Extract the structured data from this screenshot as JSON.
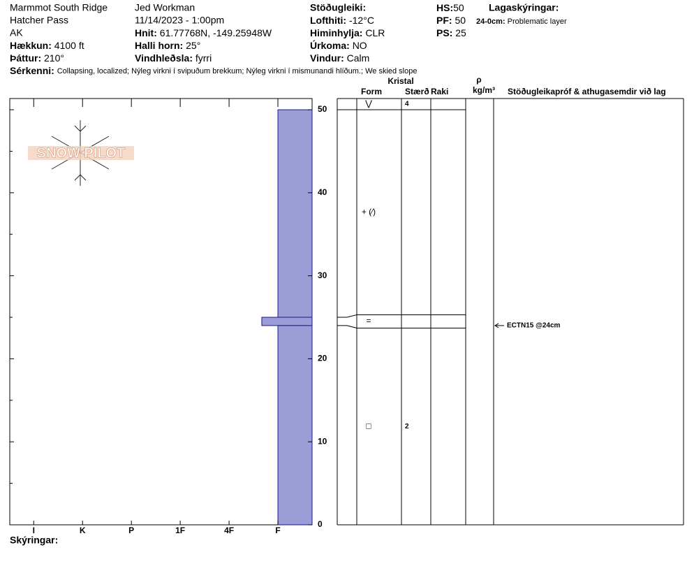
{
  "header": {
    "location": [
      "Marmmot South Ridge",
      "Hatcher Pass",
      "AK"
    ],
    "observer": "Jed Workman",
    "datetime": "11/14/2023 - 1:00pm",
    "fields": [
      {
        "label": "Hækkun:",
        "value": "4100 ft"
      },
      {
        "label": "Þáttur:",
        "value": "210°"
      },
      {
        "label": "Hnit:",
        "value": "61.77768N, -149.25948W"
      },
      {
        "label": "Halli horn:",
        "value": "25°"
      },
      {
        "label": "Vindhleðsla:",
        "value": "fyrri"
      },
      {
        "label": "Lofthiti:",
        "value": "-12°C"
      },
      {
        "label": "Himinhylja:",
        "value": "CLR"
      },
      {
        "label": "Úrkoma:",
        "value": "NO"
      },
      {
        "label": "Vindur:",
        "value": "Calm"
      }
    ],
    "stability_label": "Stöðugleiki:",
    "snow": [
      {
        "label": "HS:",
        "value": 50
      },
      {
        "label": "PF:",
        "value": 50
      },
      {
        "label": "PS:",
        "value": 25
      }
    ],
    "layer_notes_label": "Lagaskýringar:",
    "layer_note": {
      "range": "24-0cm:",
      "note": "Problematic layer"
    },
    "features_label": "Sérkenni:",
    "features": "Collapsing, localized;  Nýleg virkni í svipuðum brekkum;  Nýleg virkni í mismunandi hlíðum.;  We skied slope",
    "notes_label": "Skýringar:",
    "logo": "SNOW PILOT"
  },
  "chart_data": {
    "type": "snow-profile",
    "ylim": [
      0,
      51.35
    ],
    "yticks": [
      0,
      10,
      20,
      30,
      40,
      50
    ],
    "yminorticks": [
      5,
      15,
      25,
      35,
      45
    ],
    "xlim": [
      0.3,
      6.49
    ],
    "xticks": [
      {
        "value": 6,
        "label": "I"
      },
      {
        "value": 5,
        "label": "K"
      },
      {
        "value": 4,
        "label": "P"
      },
      {
        "value": 3,
        "label": "1F"
      },
      {
        "value": 2,
        "label": "4F"
      },
      {
        "value": 1,
        "label": "F"
      }
    ],
    "color": "#9c9cd6",
    "surface": {
      "form": "⋁",
      "size": 4
    },
    "layers": [
      {
        "top": 50,
        "bottom": 25,
        "hardness": 1,
        "form": "+ (⁄)"
      },
      {
        "top": 25,
        "bottom": 24,
        "hardness": 1.33,
        "form": "="
      },
      {
        "top": 24,
        "bottom": 0,
        "hardness": 1,
        "form": "□",
        "size": 2
      }
    ],
    "tests": [
      {
        "label": "ECTN15 @24cm",
        "depth": 24
      }
    ],
    "table": {
      "crystal": "Kristal",
      "form": "Form",
      "size": "Stærð",
      "moisture": "Raki",
      "density_symbol": "ρ",
      "density_unit": "kg/m³",
      "comments": "Stöðugleikapróf & athugasemdir við lag"
    }
  }
}
